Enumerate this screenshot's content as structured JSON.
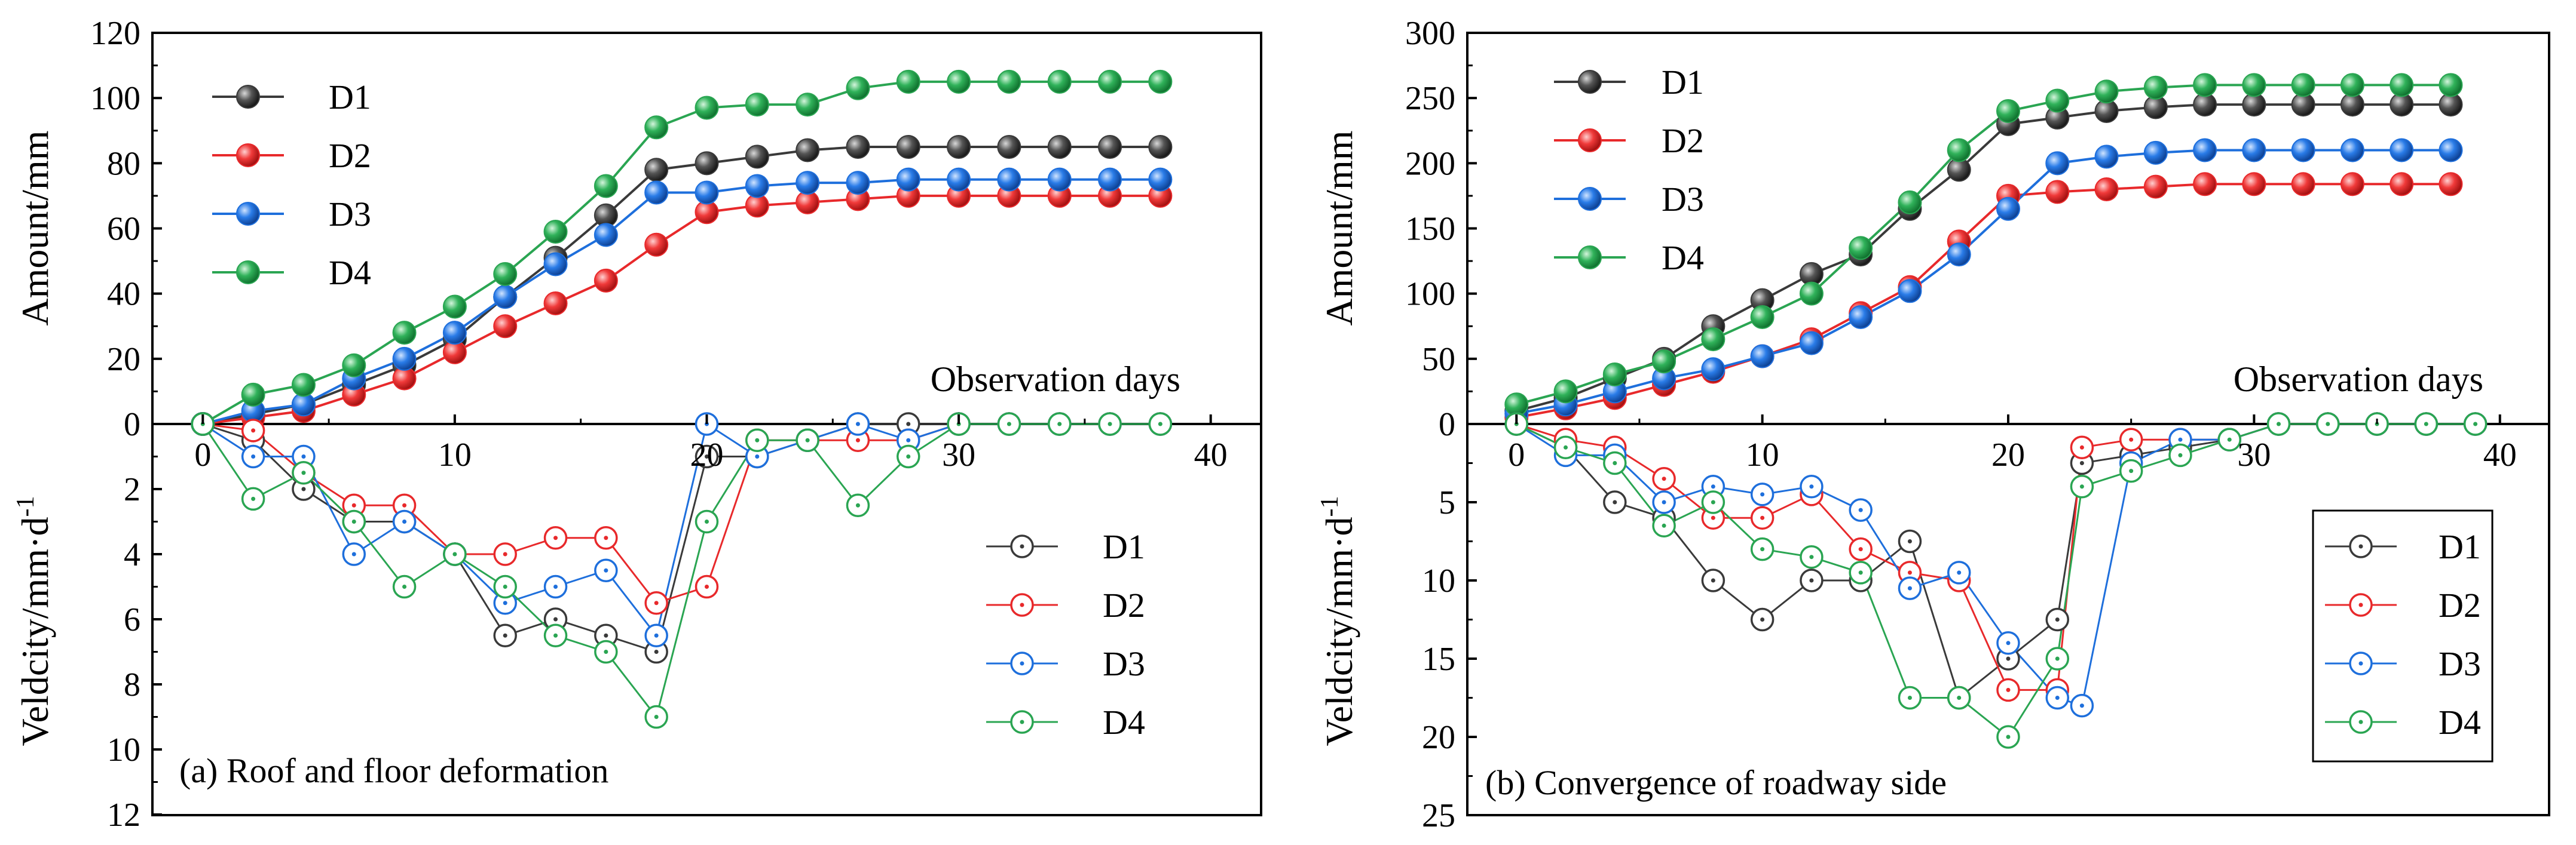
{
  "chart_data": [
    {
      "id": "a",
      "type": "line",
      "caption": "(a) Roof and floor deformation",
      "xlabel": "Observation days",
      "upper": {
        "ylabel": "Amount/mm",
        "ylim": [
          0,
          120
        ],
        "yticks": [
          0,
          20,
          40,
          60,
          80,
          100,
          120
        ],
        "marker": "filled-sphere",
        "series": [
          {
            "name": "D1",
            "x": [
              0,
              2,
              4,
              6,
              8,
              10,
              12,
              14,
              16,
              18,
              20,
              22,
              24,
              26,
              28,
              30,
              32,
              34,
              36,
              38
            ],
            "values": [
              0,
              3,
              6,
              12,
              18,
              26,
              39,
              51,
              64,
              78,
              80,
              82,
              84,
              85,
              85,
              85,
              85,
              85,
              85,
              85
            ]
          },
          {
            "name": "D2",
            "x": [
              0,
              2,
              4,
              6,
              8,
              10,
              12,
              14,
              16,
              18,
              20,
              22,
              24,
              26,
              28,
              30,
              32,
              34,
              36,
              38
            ],
            "values": [
              0,
              2,
              4,
              9,
              14,
              22,
              30,
              37,
              44,
              55,
              65,
              67,
              68,
              69,
              70,
              70,
              70,
              70,
              70,
              70
            ]
          },
          {
            "name": "D3",
            "x": [
              0,
              2,
              4,
              6,
              8,
              10,
              12,
              14,
              16,
              18,
              20,
              22,
              24,
              26,
              28,
              30,
              32,
              34,
              36,
              38
            ],
            "values": [
              0,
              4,
              6,
              14,
              20,
              28,
              39,
              49,
              58,
              71,
              71,
              73,
              74,
              74,
              75,
              75,
              75,
              75,
              75,
              75
            ]
          },
          {
            "name": "D4",
            "x": [
              0,
              2,
              4,
              6,
              8,
              10,
              12,
              14,
              16,
              18,
              20,
              22,
              24,
              26,
              28,
              30,
              32,
              34,
              36,
              38
            ],
            "values": [
              0,
              9,
              12,
              18,
              28,
              36,
              46,
              59,
              73,
              91,
              97,
              98,
              98,
              103,
              105,
              105,
              105,
              105,
              105,
              105
            ]
          }
        ]
      },
      "lower": {
        "ylabel": "Veldcity/mm·d",
        "ylabel_sup": "-1",
        "ylim": [
          0,
          12
        ],
        "yticks": [
          2,
          4,
          6,
          8,
          10,
          12
        ],
        "inverted": true,
        "marker": "open-circle-dot",
        "series": [
          {
            "name": "D1",
            "x": [
              0,
              2,
              4,
              6,
              8,
              10,
              12,
              14,
              16,
              18,
              20,
              22,
              24,
              26,
              28,
              30,
              32,
              34,
              36,
              38
            ],
            "values": [
              0,
              0.5,
              2,
              3,
              3,
              4,
              6.5,
              6,
              6.5,
              7,
              1,
              1,
              0.5,
              0,
              0,
              0,
              0,
              0,
              0,
              0
            ]
          },
          {
            "name": "D2",
            "x": [
              0,
              2,
              4,
              6,
              8,
              10,
              12,
              14,
              16,
              18,
              20,
              22,
              24,
              26,
              28,
              30,
              32,
              34,
              36,
              38
            ],
            "values": [
              0,
              0.2,
              1.5,
              2.5,
              2.5,
              4,
              4,
              3.5,
              3.5,
              5.5,
              5,
              0.5,
              0.5,
              0.5,
              0.5,
              0,
              0,
              0,
              0,
              0
            ]
          },
          {
            "name": "D3",
            "x": [
              0,
              2,
              4,
              6,
              8,
              10,
              12,
              14,
              16,
              18,
              20,
              22,
              24,
              26,
              28,
              30,
              32,
              34,
              36,
              38
            ],
            "values": [
              0,
              1,
              1,
              4,
              3,
              4,
              5.5,
              5,
              4.5,
              6.5,
              0,
              1,
              0.5,
              0,
              0.5,
              0,
              0,
              0,
              0,
              0
            ]
          },
          {
            "name": "D4",
            "x": [
              0,
              2,
              4,
              6,
              8,
              10,
              12,
              14,
              16,
              18,
              20,
              22,
              24,
              26,
              28,
              30,
              32,
              34,
              36,
              38
            ],
            "values": [
              0,
              2.3,
              1.5,
              3,
              5,
              4,
              5,
              6.5,
              7,
              9,
              3,
              0.5,
              0.5,
              2.5,
              1,
              0,
              0,
              0,
              0,
              0
            ]
          }
        ]
      },
      "xlim": [
        -2,
        42
      ],
      "xticks": [
        0,
        10,
        20,
        30,
        40
      ]
    },
    {
      "id": "b",
      "type": "line",
      "caption": "(b) Convergence of roadway side",
      "xlabel": "Observation days",
      "upper": {
        "ylabel": "Amount/mm",
        "ylim": [
          0,
          300
        ],
        "yticks": [
          0,
          50,
          100,
          150,
          200,
          250,
          300
        ],
        "marker": "filled-sphere",
        "series": [
          {
            "name": "D1",
            "x": [
              0,
              2,
              4,
              6,
              8,
              10,
              12,
              14,
              16,
              18,
              20,
              22,
              24,
              26,
              28,
              30,
              32,
              34,
              36,
              38
            ],
            "values": [
              10,
              20,
              35,
              50,
              75,
              95,
              115,
              130,
              165,
              195,
              230,
              235,
              240,
              243,
              245,
              245,
              245,
              245,
              245,
              245
            ]
          },
          {
            "name": "D2",
            "x": [
              0,
              2,
              4,
              6,
              8,
              10,
              12,
              14,
              16,
              18,
              20,
              22,
              24,
              26,
              28,
              30,
              32,
              34,
              36,
              38
            ],
            "values": [
              5,
              12,
              20,
              30,
              40,
              52,
              65,
              85,
              105,
              140,
              175,
              178,
              180,
              182,
              184,
              184,
              184,
              184,
              184,
              184
            ]
          },
          {
            "name": "D3",
            "x": [
              0,
              2,
              4,
              6,
              8,
              10,
              12,
              14,
              16,
              18,
              20,
              22,
              24,
              26,
              28,
              30,
              32,
              34,
              36,
              38
            ],
            "values": [
              8,
              15,
              25,
              35,
              42,
              52,
              62,
              82,
              102,
              130,
              165,
              200,
              205,
              208,
              210,
              210,
              210,
              210,
              210,
              210
            ]
          },
          {
            "name": "D4",
            "x": [
              0,
              2,
              4,
              6,
              8,
              10,
              12,
              14,
              16,
              18,
              20,
              22,
              24,
              26,
              28,
              30,
              32,
              34,
              36,
              38
            ],
            "values": [
              15,
              25,
              38,
              48,
              65,
              82,
              100,
              135,
              170,
              210,
              240,
              248,
              255,
              258,
              260,
              260,
              260,
              260,
              260,
              260
            ]
          }
        ]
      },
      "lower": {
        "ylabel": "Veldcity/mm·d",
        "ylabel_sup": "-1",
        "ylim": [
          0,
          25
        ],
        "yticks": [
          5,
          10,
          15,
          20,
          25
        ],
        "inverted": true,
        "marker": "open-circle-dot",
        "series": [
          {
            "name": "D1",
            "x": [
              0,
              2,
              4,
              6,
              8,
              10,
              12,
              14,
              16,
              18,
              20,
              22,
              23,
              25,
              27,
              29,
              31,
              33,
              35,
              37,
              39
            ],
            "values": [
              0,
              1.5,
              5,
              6,
              10,
              12.5,
              10,
              10,
              7.5,
              17.5,
              15,
              12.5,
              2.5,
              2,
              1.5,
              1,
              0,
              0,
              0,
              0,
              0
            ]
          },
          {
            "name": "D2",
            "x": [
              0,
              2,
              4,
              6,
              8,
              10,
              12,
              14,
              16,
              18,
              20,
              22,
              23,
              25,
              27,
              29,
              31,
              33,
              35,
              37,
              39
            ],
            "values": [
              0,
              1,
              1.5,
              3.5,
              6,
              6,
              4.5,
              8,
              9.5,
              10,
              17,
              17,
              1.5,
              1,
              1,
              1,
              0,
              0,
              0,
              0,
              0
            ]
          },
          {
            "name": "D3",
            "x": [
              0,
              2,
              4,
              6,
              8,
              10,
              12,
              14,
              16,
              18,
              20,
              22,
              23,
              25,
              27,
              29,
              31,
              33,
              35,
              37,
              39
            ],
            "values": [
              0,
              2,
              2,
              5,
              4,
              4.5,
              4,
              5.5,
              10.5,
              9.5,
              14,
              17.5,
              18,
              2.5,
              1,
              1,
              0,
              0,
              0,
              0,
              0
            ]
          },
          {
            "name": "D4",
            "x": [
              0,
              2,
              4,
              6,
              8,
              10,
              12,
              14,
              16,
              18,
              20,
              22,
              23,
              25,
              27,
              29,
              31,
              33,
              35,
              37,
              39
            ],
            "values": [
              0,
              1.5,
              2.5,
              6.5,
              5,
              8,
              8.5,
              9.5,
              17.5,
              17.5,
              20,
              15,
              4,
              3,
              2,
              1,
              0,
              0,
              0,
              0,
              0
            ]
          }
        ]
      },
      "xlim": [
        -2,
        42
      ],
      "xticks": [
        0,
        10,
        20,
        30,
        40
      ]
    }
  ],
  "colors": {
    "D1": "#3a3a3a",
    "D2": "#e8292b",
    "D3": "#1e6fdc",
    "D4": "#2aa552"
  }
}
